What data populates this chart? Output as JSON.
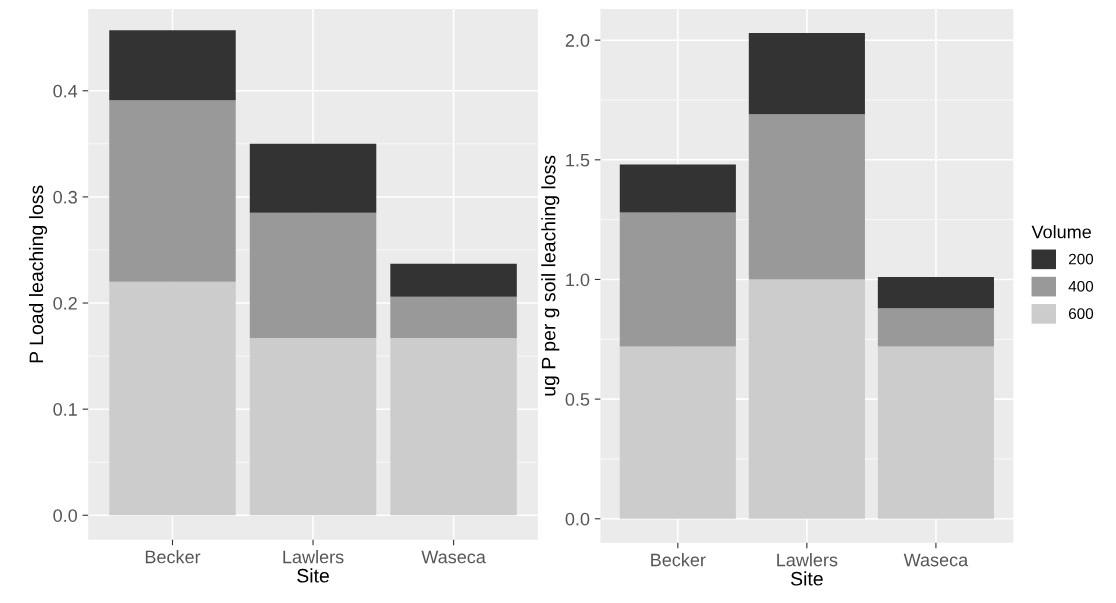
{
  "chart_data": [
    {
      "type": "bar",
      "stacked": true,
      "xlabel": "Site",
      "ylabel": "P Load leaching loss",
      "categories": [
        "Becker",
        "Lawlers",
        "Waseca"
      ],
      "ylim": [
        -0.023,
        0.477
      ],
      "yticks": [
        {
          "value": 0,
          "label": "0.0"
        },
        0.1,
        0.2,
        0.3,
        0.4
      ],
      "grid": true,
      "legend": "right",
      "legend_title": "Volume",
      "series": [
        {
          "name": "600",
          "color": "#cccccc",
          "values": [
            0.22,
            0.167,
            0.167
          ]
        },
        {
          "name": "400",
          "color": "#999999",
          "values": [
            0.171,
            0.118,
            0.039
          ]
        },
        {
          "name": "200",
          "color": "#333333",
          "values": [
            0.066,
            0.065,
            0.031
          ]
        }
      ]
    },
    {
      "type": "bar",
      "stacked": true,
      "xlabel": "Site",
      "ylabel": "ug P per g soil leaching loss",
      "categories": [
        "Becker",
        "Lawlers",
        "Waseca"
      ],
      "ylim": [
        -0.1,
        2.13
      ],
      "yticks": [
        {
          "value": 0,
          "label": "0.0"
        },
        0.5,
        {
          "value": 1,
          "label": "1.0"
        },
        1.5,
        {
          "value": 2,
          "label": "2.0"
        }
      ],
      "grid": true,
      "legend": false,
      "series": [
        {
          "name": "600",
          "color": "#cccccc",
          "values": [
            0.72,
            1.0,
            0.72
          ]
        },
        {
          "name": "400",
          "color": "#999999",
          "values": [
            0.56,
            0.69,
            0.16
          ]
        },
        {
          "name": "200",
          "color": "#333333",
          "values": [
            0.2,
            0.34,
            0.13
          ]
        }
      ]
    }
  ]
}
